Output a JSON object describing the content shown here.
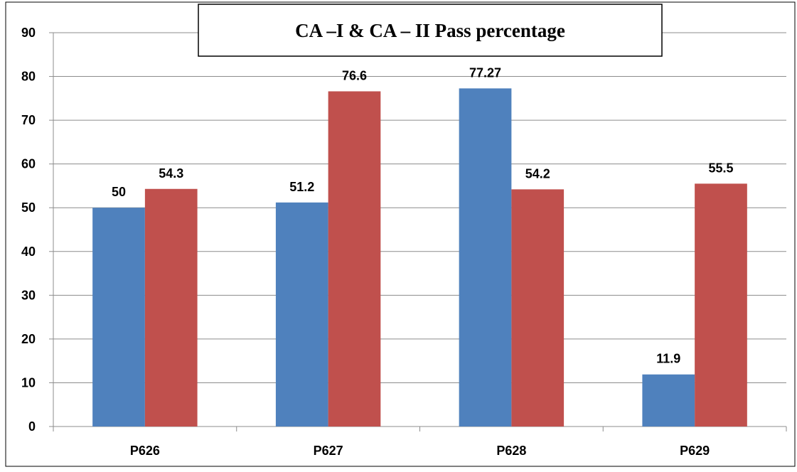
{
  "chart_data": {
    "type": "bar",
    "title": "CA –I & CA – II Pass percentage",
    "categories": [
      "P626",
      "P627",
      "P628",
      "P629"
    ],
    "series": [
      {
        "values": [
          50,
          51.2,
          77.27,
          11.9
        ],
        "color": "#4F81BD"
      },
      {
        "values": [
          54.3,
          76.6,
          54.2,
          55.5
        ],
        "color": "#C0504D"
      }
    ],
    "data_labels": [
      [
        "50",
        "51.2",
        "77.27",
        "11.9"
      ],
      [
        "54.3",
        "76.6",
        "54.2",
        "55.5"
      ]
    ],
    "y_ticks": [
      "0",
      "10",
      "20",
      "30",
      "40",
      "50",
      "60",
      "70",
      "80",
      "90"
    ],
    "xlabel": "",
    "ylabel": "",
    "ylim": [
      0,
      90
    ],
    "grid": true,
    "legend": "none"
  }
}
